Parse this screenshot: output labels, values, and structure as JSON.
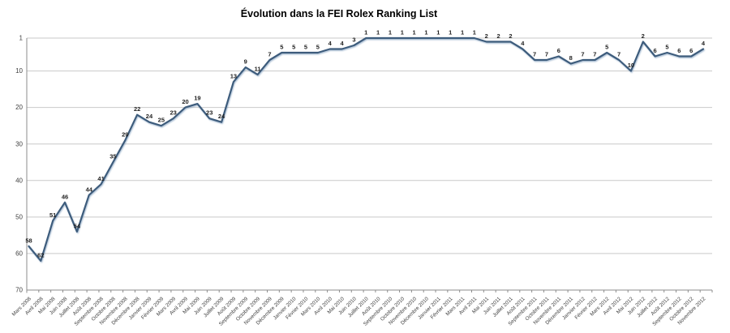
{
  "chart_data": {
    "type": "line",
    "title": "Évolution dans la FEI Rolex Ranking List",
    "xlabel": "",
    "ylabel": "",
    "legend": "none",
    "grid": "horizontal",
    "y_axis_reversed": true,
    "ylim": [
      1,
      70
    ],
    "y_ticks": [
      1,
      10,
      20,
      30,
      40,
      50,
      60,
      70
    ],
    "data_labels": "above",
    "line_color": "#3E5C7C",
    "grid_color": "#C9C9C9",
    "axis_color": "#8C8C8C",
    "label_color": "#3F3F3F",
    "x": [
      "Mars 2008",
      "Avril 2008",
      "Mai 2008",
      "Juin 2008",
      "Juillet 2008",
      "Août 2008",
      "Septembre 2008",
      "Octobre 2008",
      "Novembre 2008",
      "Décembre 2008",
      "Janvier 2009",
      "Février 2009",
      "Mars 2009",
      "Avril 2009",
      "Mai 2009",
      "Juin 2009",
      "Juillet 2009",
      "Août 2009",
      "Septembre 2009",
      "Octobre 2009",
      "Novembre 2009",
      "Décembre 2009",
      "Janvier 2010",
      "Février 2010",
      "Mars 2010",
      "Avril 2010",
      "Mai 2010",
      "Juin 2010",
      "Juillet 2010",
      "Août 2010",
      "Septembre 2010",
      "Octobre 2010",
      "Novembre 2010",
      "Décembre 2010",
      "Janvier 2011",
      "Février 2011",
      "Mars 2011",
      "Avril 2011",
      "Mai 2011",
      "Juin 2011",
      "Juillet 2011",
      "Août 2011",
      "Septembre 2011",
      "Octobre 2011",
      "Novembre 2011",
      "Décembre 2011",
      "Janvier 2012",
      "Février 2012",
      "Mars 2012",
      "Avril 2012",
      "Mai 2012",
      "Juin 2012",
      "Juillet 2012",
      "Août 2012",
      "Septembre 2012",
      "Octobre 2012",
      "Novembre 2012"
    ],
    "values": [
      58,
      62,
      51,
      46,
      54,
      44,
      41,
      35,
      29,
      22,
      24,
      25,
      23,
      20,
      19,
      23,
      24,
      13,
      9,
      11,
      7,
      5,
      5,
      5,
      5,
      4,
      4,
      3,
      1,
      1,
      1,
      1,
      1,
      1,
      1,
      1,
      1,
      1,
      2,
      2,
      2,
      4,
      7,
      7,
      6,
      8,
      7,
      7,
      5,
      7,
      10,
      2,
      6,
      5,
      6,
      6,
      4
    ]
  }
}
